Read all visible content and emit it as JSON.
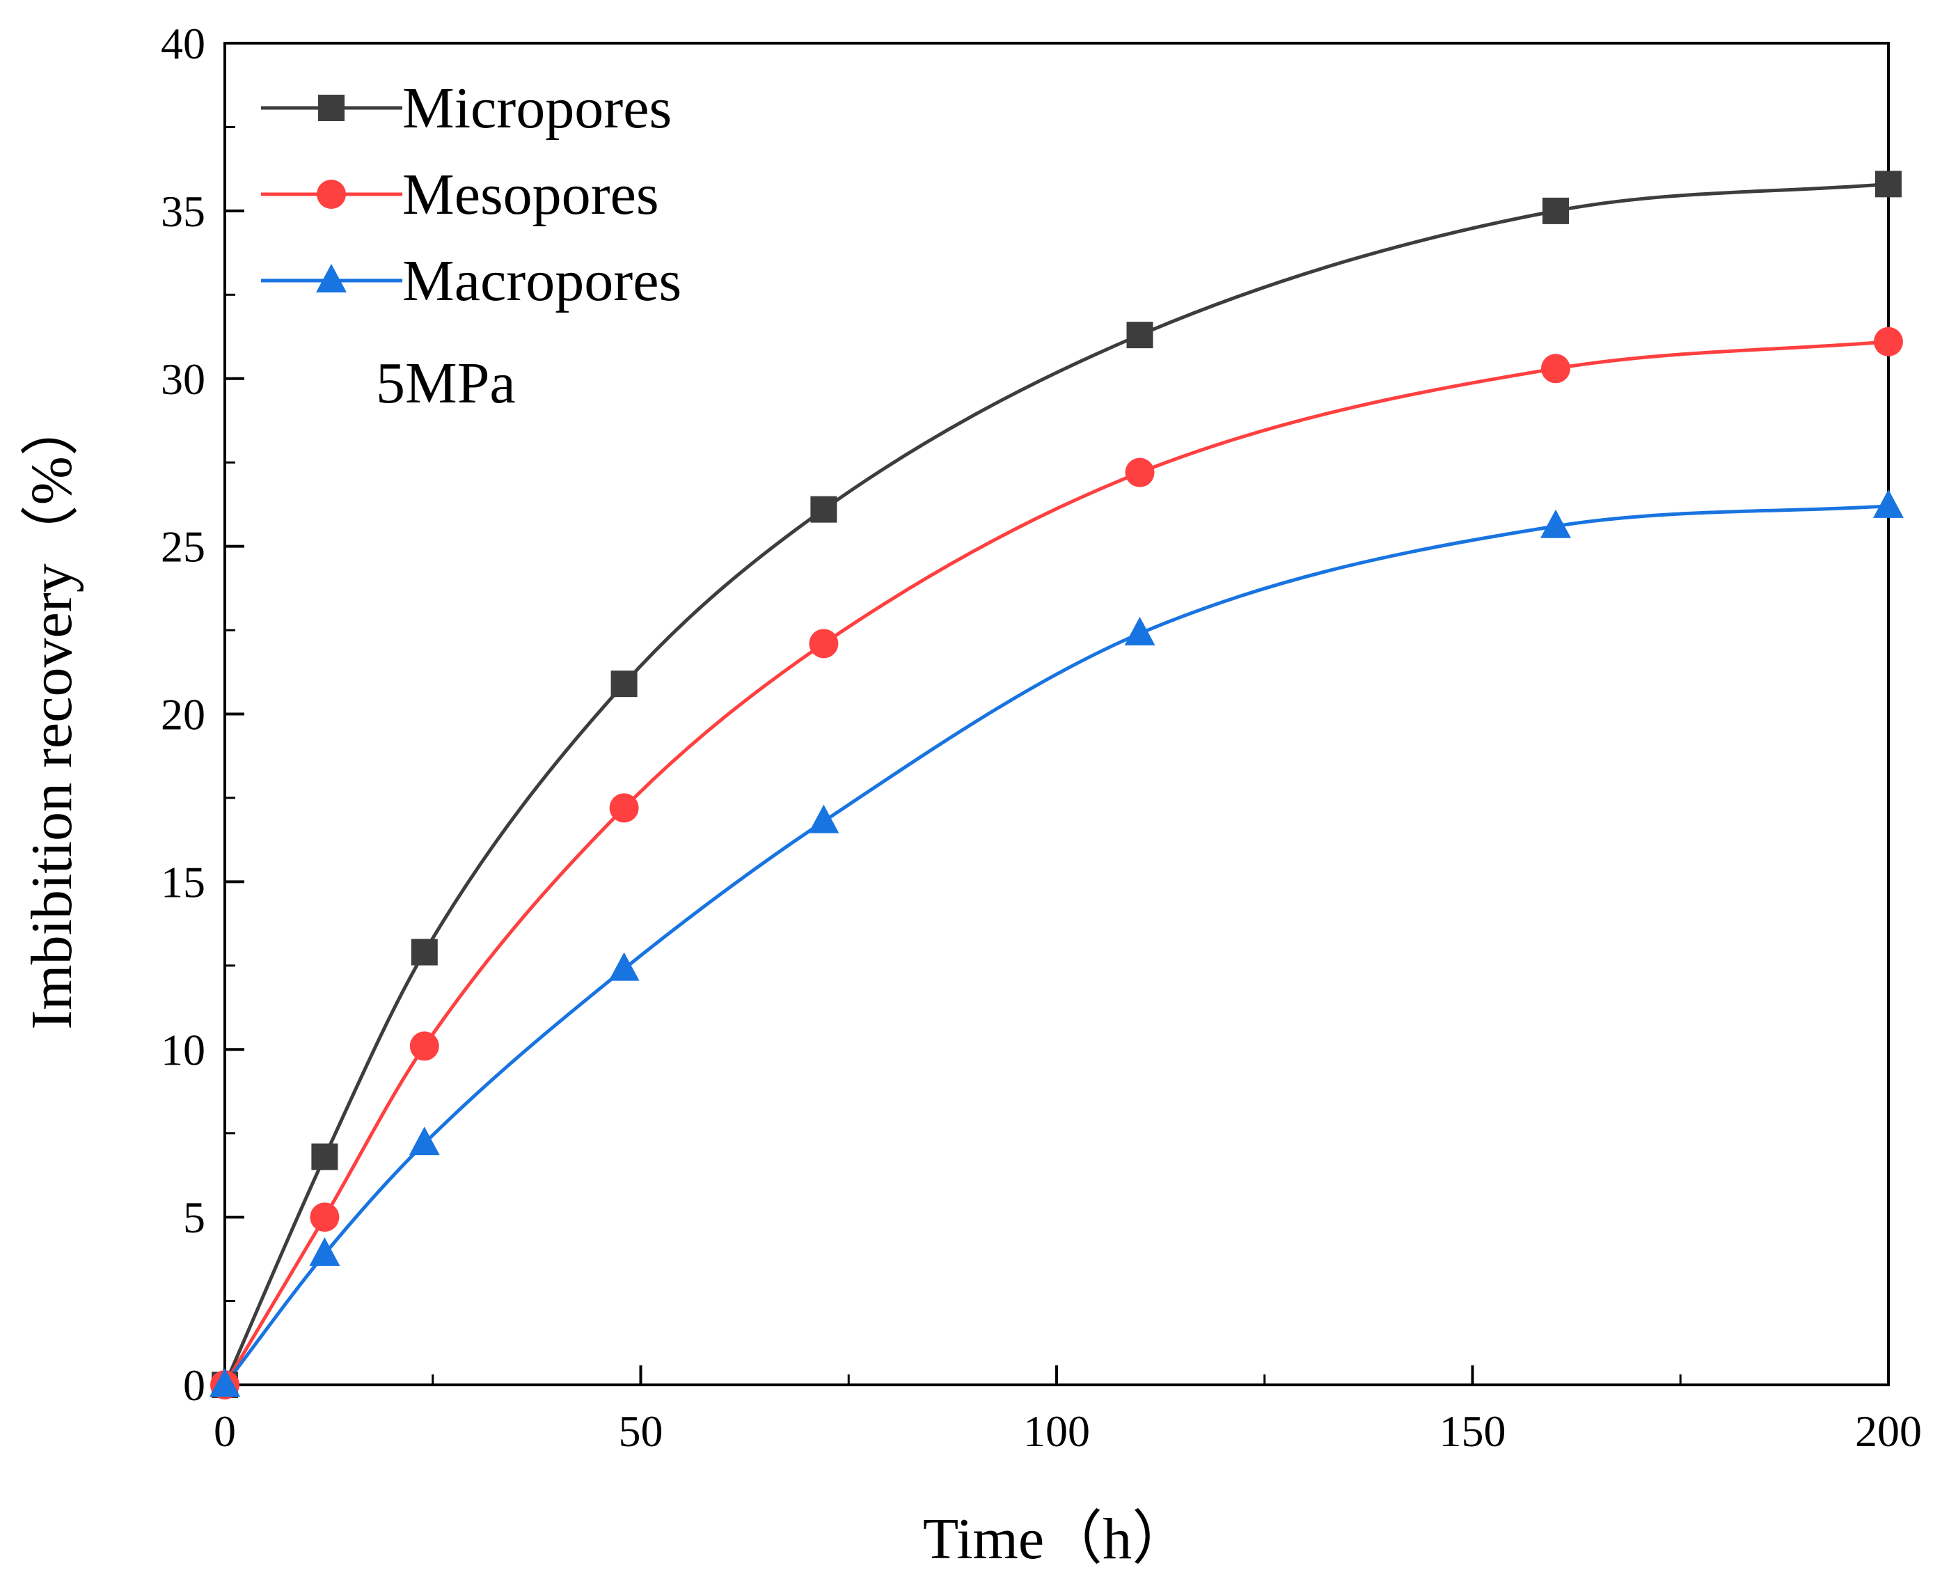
{
  "chart_data": {
    "type": "line",
    "title": "",
    "xlabel": "Time（h）",
    "ylabel": "Imbibition recovery（%）",
    "xlim": [
      0,
      200
    ],
    "ylim": [
      0,
      40
    ],
    "xticks": [
      0,
      50,
      100,
      150,
      200
    ],
    "yticks": [
      0,
      5,
      10,
      15,
      20,
      25,
      30,
      35,
      40
    ],
    "x_tick_labels": [
      "0",
      "50",
      "100",
      "150",
      "200"
    ],
    "y_tick_labels": [
      "0",
      "5",
      "10",
      "15",
      "20",
      "25",
      "30",
      "35",
      "40"
    ],
    "grid": false,
    "legend_position": "top-left",
    "annotation": "5MPa",
    "x": [
      0,
      12,
      24,
      48,
      72,
      110,
      160,
      200
    ],
    "series": [
      {
        "name": "Micropores",
        "marker": "square",
        "color": "#3d3d3d",
        "values": [
          0,
          6.8,
          12.9,
          20.9,
          26.1,
          31.3,
          35.0,
          35.8
        ]
      },
      {
        "name": "Mesopores",
        "marker": "circle",
        "color": "#ff4040",
        "values": [
          0,
          5.0,
          10.1,
          17.2,
          22.1,
          27.2,
          30.3,
          31.1
        ]
      },
      {
        "name": "Macropores",
        "marker": "triangle",
        "color": "#1874e0",
        "values": [
          0,
          3.9,
          7.2,
          12.4,
          16.8,
          22.4,
          25.6,
          26.2
        ]
      }
    ]
  }
}
